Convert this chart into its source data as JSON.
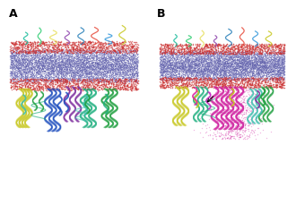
{
  "background_color": "#ffffff",
  "label_A": "A",
  "label_B": "B",
  "label_fontsize": 9,
  "seed": 42,
  "membrane_color_main": "#8080cc",
  "membrane_color_red": "#cc3333",
  "membrane_color_scatter": "#7070bb",
  "protein_colors_A": [
    "#c8c820",
    "#20b080",
    "#2050c0",
    "#8030a0",
    "#20a040",
    "#40c0b0",
    "#c87020"
  ],
  "protein_colors_B": [
    "#c8c820",
    "#20b080",
    "#c020c0",
    "#e020a0",
    "#8030a0",
    "#20a040",
    "#40c0b0"
  ],
  "magenta_color": "#d020a0"
}
